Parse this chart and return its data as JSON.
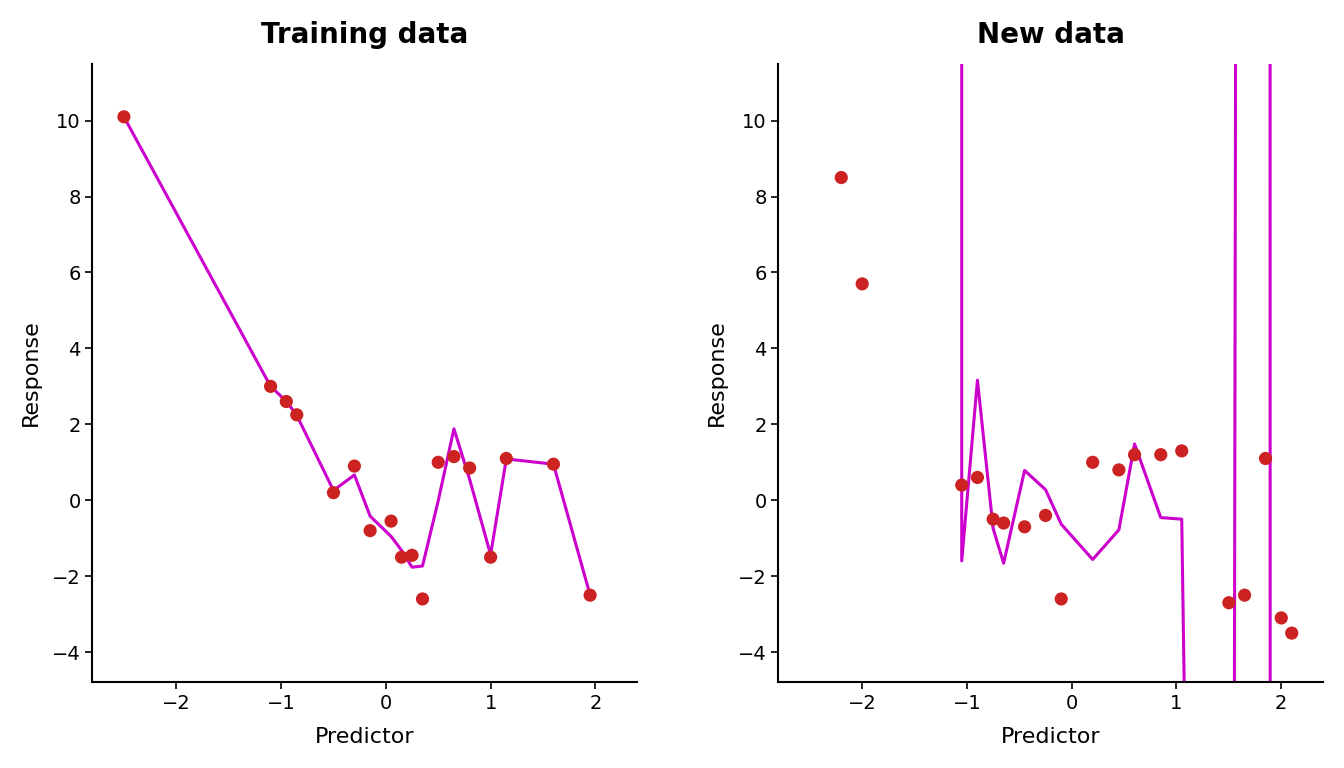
{
  "title_left": "Training data",
  "title_right": "New data",
  "xlabel": "Predictor",
  "ylabel": "Response",
  "ylim": [
    -4.8,
    11.5
  ],
  "xlim": [
    -2.8,
    2.4
  ],
  "yticks": [
    -4,
    -2,
    0,
    2,
    4,
    6,
    8,
    10
  ],
  "xticks": [
    -2,
    -1,
    0,
    1,
    2
  ],
  "dot_color": "#cc2222",
  "line_color": "#cc00cc",
  "bg_color": "#ffffff",
  "train_x": [
    -2.5,
    -1.1,
    -0.95,
    -0.85,
    -0.5,
    -0.3,
    -0.15,
    0.05,
    0.15,
    0.25,
    0.35,
    0.5,
    0.65,
    0.8,
    1.0,
    1.15,
    1.6,
    1.95
  ],
  "train_y": [
    10.1,
    3.0,
    2.6,
    2.25,
    0.2,
    0.9,
    -0.8,
    -0.55,
    -1.5,
    -1.45,
    -2.6,
    1.0,
    1.15,
    0.85,
    -1.5,
    1.1,
    0.95,
    -2.5
  ],
  "test_x": [
    -2.2,
    -2.0,
    -1.05,
    -0.9,
    -0.75,
    -0.65,
    -0.45,
    -0.25,
    -0.1,
    0.2,
    0.45,
    0.6,
    0.85,
    1.05,
    1.5,
    1.65,
    1.85,
    2.0,
    2.1
  ],
  "test_y": [
    8.5,
    5.7,
    0.4,
    0.6,
    -0.5,
    -0.6,
    -0.7,
    -0.4,
    -2.6,
    1.0,
    0.8,
    1.2,
    1.2,
    1.3,
    -2.7,
    -2.5,
    1.1,
    -3.1,
    -3.5
  ],
  "degree": 14,
  "seed": 42
}
